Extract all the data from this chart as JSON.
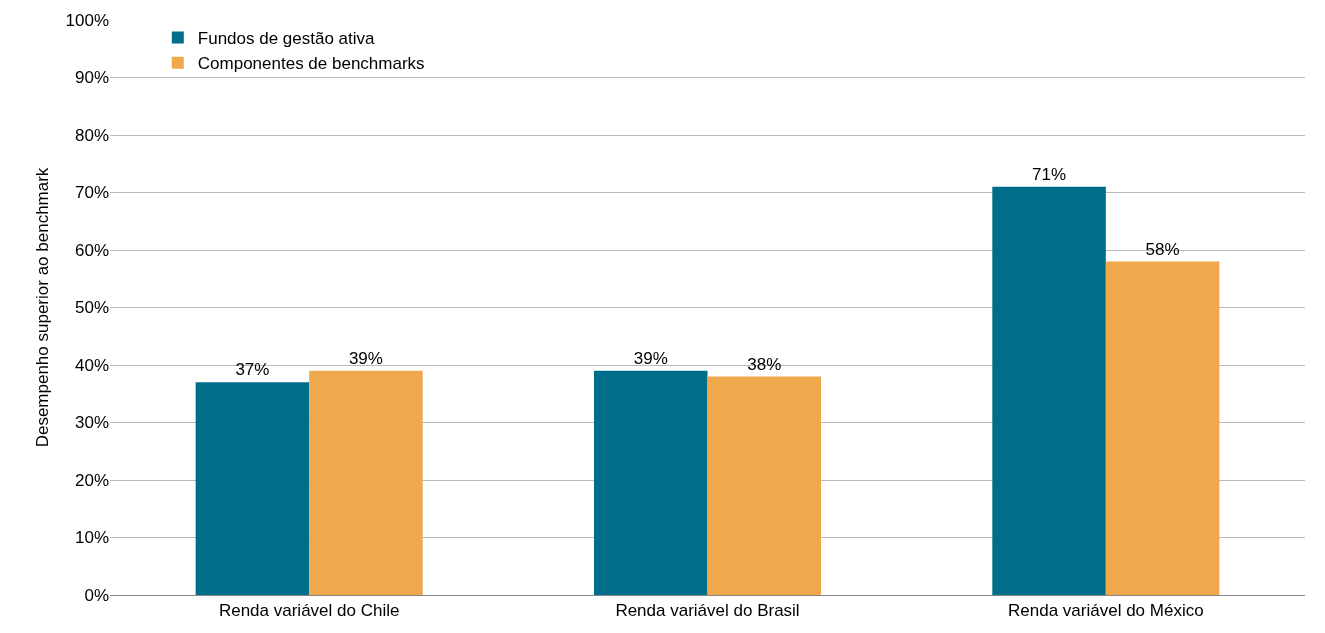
{
  "chart_data": {
    "type": "bar",
    "ylabel": "Desempenho superior ao benchmark",
    "categories": [
      "Renda variável do Chile",
      "Renda variável do Brasil",
      "Renda variável do México"
    ],
    "series": [
      {
        "name": "Fundos de gestão ativa",
        "color": "#006e8a",
        "values": [
          37,
          39,
          71
        ],
        "value_labels": [
          "37%",
          "39%",
          "71%"
        ]
      },
      {
        "name": "Componentes de benchmarks",
        "color": "#f0a84c",
        "values": [
          39,
          38,
          58
        ],
        "value_labels": [
          "39%",
          "38%",
          "58%"
        ]
      }
    ],
    "ylim": [
      0,
      100
    ],
    "yticks": [
      {
        "value": 0,
        "label": "0%"
      },
      {
        "value": 10,
        "label": "10%"
      },
      {
        "value": 20,
        "label": "20%"
      },
      {
        "value": 30,
        "label": "30%"
      },
      {
        "value": 40,
        "label": "40%"
      },
      {
        "value": 50,
        "label": "50%"
      },
      {
        "value": 60,
        "label": "60%"
      },
      {
        "value": 70,
        "label": "70%"
      },
      {
        "value": 80,
        "label": "80%"
      },
      {
        "value": 90,
        "label": "90%"
      },
      {
        "value": 100,
        "label": "100%"
      }
    ],
    "grid": "y",
    "legend": "top left"
  }
}
